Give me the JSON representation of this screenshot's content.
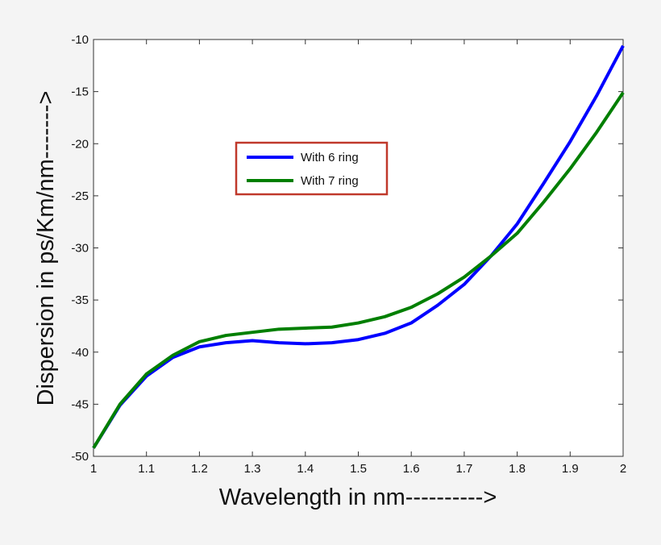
{
  "chart_data": {
    "type": "line",
    "title": "",
    "xlabel": "Wavelength in nm---------->",
    "ylabel": "Dispersion in ps/Km/nm------->",
    "xlim": [
      1,
      2
    ],
    "ylim": [
      -50,
      -10
    ],
    "xticks": [
      "1",
      "1.1",
      "1.2",
      "1.3",
      "1.4",
      "1.5",
      "1.6",
      "1.7",
      "1.8",
      "1.9",
      "2"
    ],
    "yticks": [
      "-10",
      "-15",
      "-20",
      "-25",
      "-30",
      "-35",
      "-40",
      "-45",
      "-50"
    ],
    "grid": false,
    "legend_position": "upper-left-center",
    "x": [
      1.0,
      1.05,
      1.1,
      1.15,
      1.2,
      1.25,
      1.3,
      1.35,
      1.4,
      1.45,
      1.5,
      1.55,
      1.6,
      1.65,
      1.7,
      1.75,
      1.8,
      1.85,
      1.9,
      1.95,
      2.0
    ],
    "series": [
      {
        "name": "With 6 ring",
        "color": "#0000ff",
        "values": [
          -49.2,
          -45.1,
          -42.3,
          -40.5,
          -39.5,
          -39.1,
          -38.9,
          -39.1,
          -39.2,
          -39.1,
          -38.8,
          -38.2,
          -37.2,
          -35.5,
          -33.5,
          -30.8,
          -27.7,
          -23.8,
          -19.8,
          -15.4,
          -10.6
        ]
      },
      {
        "name": "With 7 ring",
        "color": "#007f00",
        "values": [
          -49.2,
          -45.0,
          -42.1,
          -40.3,
          -39.0,
          -38.4,
          -38.1,
          -37.8,
          -37.7,
          -37.6,
          -37.2,
          -36.6,
          -35.7,
          -34.4,
          -32.8,
          -30.8,
          -28.6,
          -25.6,
          -22.4,
          -18.9,
          -15.1
        ]
      }
    ],
    "legend_border_color": "#c0392b"
  }
}
